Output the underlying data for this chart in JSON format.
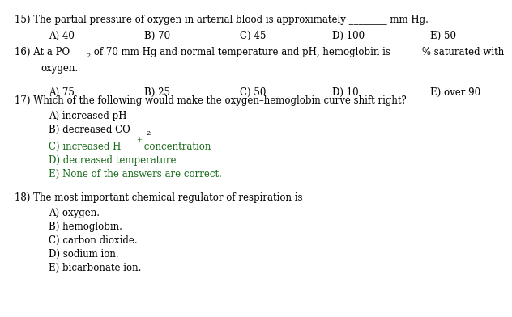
{
  "bg_color": "#ffffff",
  "black": "#000000",
  "green": "#1a6b1a",
  "font_family": "DejaVu Serif",
  "fs": 8.5,
  "fs_sub": 6.0,
  "q15_q": [
    8,
    10,
    "15) The partial pressure of oxygen in arterial blood is approximately ________ mm Hg."
  ],
  "q15_ans": [
    [
      50,
      28,
      "A) 40",
      "#000000"
    ],
    [
      168,
      28,
      "B) 70",
      "#000000"
    ],
    [
      286,
      28,
      "C) 45",
      "#000000"
    ],
    [
      400,
      28,
      "D) 100",
      "#000000"
    ],
    [
      521,
      28,
      "E) 50",
      "#000000"
    ]
  ],
  "q16_parts": [
    [
      8,
      57,
      "16) At a PO",
      "#000000"
    ],
    [
      57,
      67,
      "2",
      "#000000"
    ],
    [
      63,
      57,
      " of 70 mm Hg and normal temperature and pH, hemoglobin is ______% saturated with",
      "#000000"
    ],
    [
      42,
      78,
      "oxygen.",
      "#000000"
    ]
  ],
  "q16_ans": [
    [
      50,
      98,
      "A) 75",
      "#000000"
    ],
    [
      168,
      98,
      "B) 25",
      "#000000"
    ],
    [
      286,
      98,
      "C) 50",
      "#000000"
    ],
    [
      400,
      98,
      "D) 10",
      "#000000"
    ],
    [
      521,
      98,
      "E) over 90",
      "#000000"
    ]
  ],
  "q17_q": [
    8,
    128,
    "17) Which of the following would make the oxygen–hemoglobin curve shift right?"
  ],
  "q17_ans": [
    [
      50,
      148,
      "A) increased pH",
      "#000000"
    ],
    [
      50,
      165,
      "B) decreased CO",
      "#000000"
    ],
    [
      50,
      185,
      "C) increased H",
      "#1a6b1a"
    ],
    [
      50,
      200,
      "D) decreased temperature",
      "#1a6b1a"
    ],
    [
      50,
      217,
      "E) None of the answers are correct.",
      "#1a6b1a"
    ]
  ],
  "q17_b_sub": [
    164,
    173,
    "2",
    "#000000"
  ],
  "q17_c_sup": [
    155,
    179,
    "+",
    "#1a6b1a"
  ],
  "q17_c_rest": [
    162,
    185,
    " concentration",
    "#1a6b1a"
  ],
  "q18_q": [
    8,
    248,
    "18) The most important chemical regulator of respiration is"
  ],
  "q18_ans": [
    [
      50,
      265,
      "A) oxygen.",
      "#000000"
    ],
    [
      50,
      282,
      "B) hemoglobin.",
      "#000000"
    ],
    [
      50,
      299,
      "C) carbon dioxide.",
      "#000000"
    ],
    [
      50,
      316,
      "D) sodium ion.",
      "#000000"
    ],
    [
      50,
      333,
      "E) bicarbonate ion.",
      "#000000"
    ]
  ]
}
